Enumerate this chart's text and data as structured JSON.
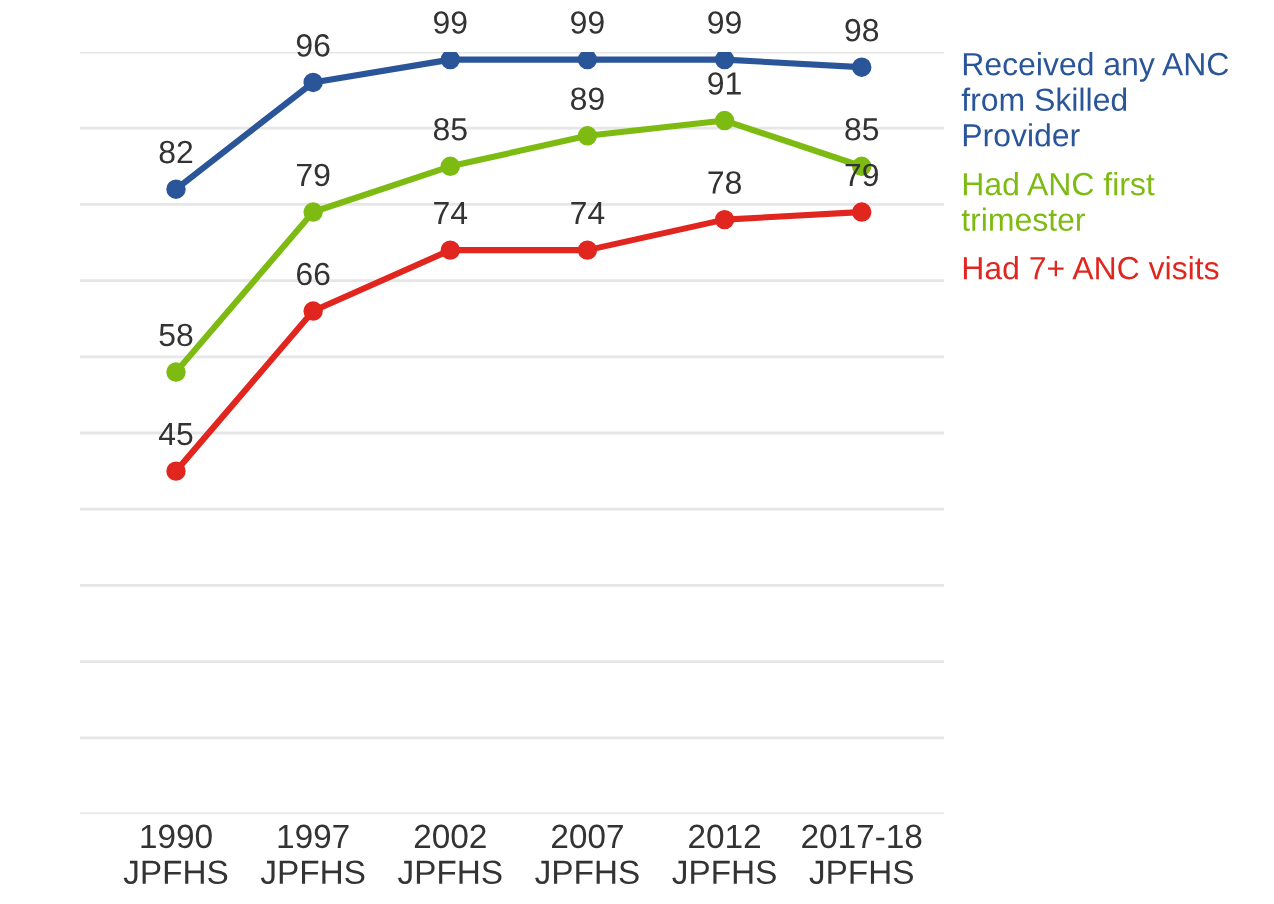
{
  "chart_data": {
    "type": "line",
    "categories": [
      "1990\nJPFHS",
      "1997\nJPFHS",
      "2002\nJPFHS",
      "2007\nJPFHS",
      "2012\nJPFHS",
      "2017-18\nJPFHS"
    ],
    "series": [
      {
        "name": "Received any ANC from Skilled Provider",
        "color": "#2a5599",
        "values": [
          82,
          96,
          99,
          99,
          99,
          98
        ]
      },
      {
        "name": "Had ANC first trimester",
        "color": "#7dbb12",
        "values": [
          58,
          79,
          85,
          89,
          91,
          85
        ]
      },
      {
        "name": "Had 7+ ANC visits",
        "color": "#e0261f",
        "values": [
          45,
          66,
          74,
          74,
          78,
          79
        ]
      }
    ],
    "ylim": [
      0,
      100
    ],
    "yticks": [
      {
        "value": 0,
        "label": null
      },
      {
        "value": 10,
        "label": null
      },
      {
        "value": 20,
        "label": null
      },
      {
        "value": 30,
        "label": null
      },
      {
        "value": 40,
        "label": null
      },
      {
        "value": 50,
        "label": null
      },
      {
        "value": 60,
        "label": null
      },
      {
        "value": 70,
        "label": null
      },
      {
        "value": 80,
        "label": null
      },
      {
        "value": 90,
        "label": null
      },
      {
        "value": 100,
        "label": null
      }
    ],
    "tick_labels": "x",
    "grid": "y",
    "legend": "right",
    "marker": "circle",
    "line_style": "solid",
    "data_labels": true
  }
}
